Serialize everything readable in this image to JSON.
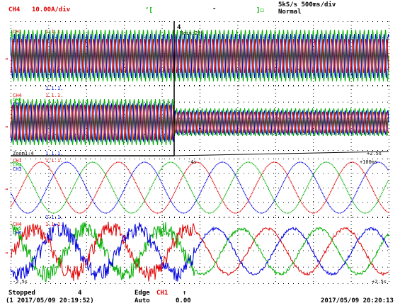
{
  "header": {
    "ch_label": "CH4",
    "ch_scale": "10.00A/div",
    "rate_line1": "5kS/s 500ms/div",
    "rate_line2": "Normal",
    "cursor_flag": "4",
    "cursor_readout": "Main:25k"
  },
  "panels": {
    "p1_channels": [
      "CH1",
      "CH2",
      "CH3"
    ],
    "p2_channels": [
      "CH4",
      "CH5",
      "CH6"
    ],
    "p3_channels": [
      "CH1",
      "CH2",
      "CH3"
    ],
    "p4_channels": [
      "CH4",
      "CH5",
      "CH6"
    ],
    "scale_tag": "1.1.1.",
    "zoom_left": "Zoom1:4",
    "zoom_right": "Zoom1:4",
    "time_left": "-2.5s",
    "time_right": "+2.5s",
    "zoom_center": "-4s",
    "zoom_end": "+100ms"
  },
  "footer": {
    "status": "Stopped",
    "count": "4",
    "trigger_time": "(1 2017/05/09 20:19:52)",
    "trig_mode": "Edge",
    "trig_ch": "CH1",
    "trig_slope": "↑",
    "trig_type": "Auto",
    "trig_level": "0.00",
    "clock": "2017/05/09 20:20:13"
  },
  "colors": {
    "red": "#e00000",
    "green": "#00b000",
    "blue": "#0000e0",
    "grid": "#000000",
    "accent": "#e00000"
  }
}
